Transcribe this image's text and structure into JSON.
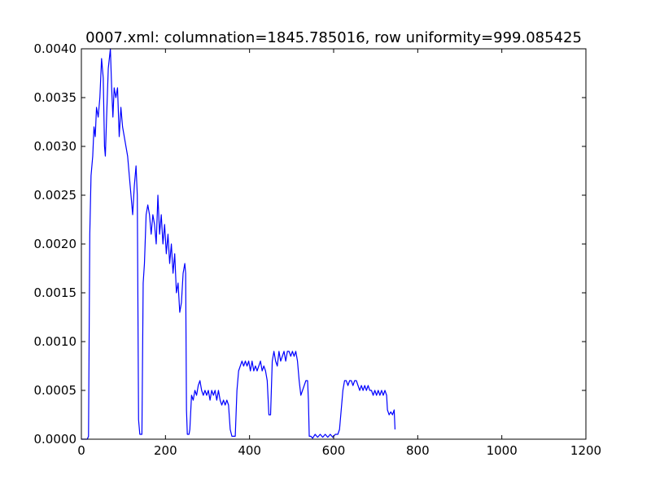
{
  "chart_data": {
    "type": "line",
    "title": "0007.xml: columnation=1845.785016, row uniformity=999.085425",
    "xlabel": "",
    "ylabel": "",
    "xlim": [
      0,
      1200
    ],
    "ylim": [
      0,
      0.004
    ],
    "x_ticks": [
      0,
      200,
      400,
      600,
      800,
      1000,
      1200
    ],
    "x_tick_labels": [
      "0",
      "200",
      "400",
      "600",
      "800",
      "1000",
      "1200"
    ],
    "y_ticks": [
      0,
      0.0005,
      0.001,
      0.0015,
      0.002,
      0.0025,
      0.003,
      0.0035,
      0.004
    ],
    "y_tick_labels": [
      "0.0000",
      "0.0005",
      "0.0010",
      "0.0015",
      "0.0020",
      "0.0025",
      "0.0030",
      "0.0035",
      "0.0040"
    ],
    "grid": false,
    "legend": "none",
    "line_color": "#0000ff",
    "series": [
      {
        "points": [
          [
            0,
            0.0
          ],
          [
            14,
            0.0
          ],
          [
            17,
            3e-05
          ],
          [
            20,
            0.0021
          ],
          [
            23,
            0.0027
          ],
          [
            27,
            0.0029
          ],
          [
            30,
            0.0032
          ],
          [
            33,
            0.0031
          ],
          [
            36,
            0.0034
          ],
          [
            40,
            0.0033
          ],
          [
            44,
            0.0035
          ],
          [
            48,
            0.0039
          ],
          [
            52,
            0.0037
          ],
          [
            55,
            0.003
          ],
          [
            57,
            0.0029
          ],
          [
            60,
            0.0033
          ],
          [
            64,
            0.0038
          ],
          [
            69,
            0.004
          ],
          [
            72,
            0.0036
          ],
          [
            75,
            0.0033
          ],
          [
            78,
            0.0036
          ],
          [
            82,
            0.0035
          ],
          [
            86,
            0.0036
          ],
          [
            90,
            0.0031
          ],
          [
            94,
            0.0034
          ],
          [
            98,
            0.0032
          ],
          [
            102,
            0.0031
          ],
          [
            106,
            0.003
          ],
          [
            110,
            0.0029
          ],
          [
            114,
            0.0027
          ],
          [
            118,
            0.0025
          ],
          [
            122,
            0.0023
          ],
          [
            126,
            0.0026
          ],
          [
            130,
            0.0028
          ],
          [
            133,
            0.0025
          ],
          [
            136,
            0.0002
          ],
          [
            139,
            5e-05
          ],
          [
            144,
            5e-05
          ],
          [
            147,
            0.0016
          ],
          [
            150,
            0.0018
          ],
          [
            154,
            0.0023
          ],
          [
            158,
            0.0024
          ],
          [
            162,
            0.0023
          ],
          [
            166,
            0.0021
          ],
          [
            170,
            0.0023
          ],
          [
            174,
            0.0022
          ],
          [
            178,
            0.002
          ],
          [
            182,
            0.0025
          ],
          [
            186,
            0.0021
          ],
          [
            190,
            0.0023
          ],
          [
            194,
            0.002
          ],
          [
            198,
            0.0022
          ],
          [
            202,
            0.0019
          ],
          [
            206,
            0.0021
          ],
          [
            210,
            0.0018
          ],
          [
            214,
            0.002
          ],
          [
            218,
            0.0017
          ],
          [
            222,
            0.0019
          ],
          [
            226,
            0.0015
          ],
          [
            230,
            0.0016
          ],
          [
            234,
            0.0013
          ],
          [
            238,
            0.0014
          ],
          [
            242,
            0.0017
          ],
          [
            246,
            0.0018
          ],
          [
            248,
            0.0017
          ],
          [
            250,
            0.0003
          ],
          [
            252,
            5e-05
          ],
          [
            256,
            5e-05
          ],
          [
            258,
            0.0001
          ],
          [
            262,
            0.00045
          ],
          [
            266,
            0.0004
          ],
          [
            270,
            0.0005
          ],
          [
            274,
            0.00045
          ],
          [
            278,
            0.00055
          ],
          [
            282,
            0.0006
          ],
          [
            286,
            0.0005
          ],
          [
            290,
            0.00045
          ],
          [
            294,
            0.0005
          ],
          [
            298,
            0.00045
          ],
          [
            302,
            0.0005
          ],
          [
            306,
            0.0004
          ],
          [
            310,
            0.0005
          ],
          [
            314,
            0.00045
          ],
          [
            318,
            0.0005
          ],
          [
            322,
            0.0004
          ],
          [
            326,
            0.0005
          ],
          [
            330,
            0.0004
          ],
          [
            334,
            0.00035
          ],
          [
            338,
            0.0004
          ],
          [
            342,
            0.00035
          ],
          [
            346,
            0.0004
          ],
          [
            350,
            0.00035
          ],
          [
            354,
            0.0001
          ],
          [
            358,
            3e-05
          ],
          [
            366,
            3e-05
          ],
          [
            370,
            0.0005
          ],
          [
            374,
            0.0007
          ],
          [
            378,
            0.00075
          ],
          [
            382,
            0.0008
          ],
          [
            386,
            0.00075
          ],
          [
            390,
            0.0008
          ],
          [
            394,
            0.00075
          ],
          [
            398,
            0.0008
          ],
          [
            402,
            0.0007
          ],
          [
            406,
            0.0008
          ],
          [
            410,
            0.0007
          ],
          [
            414,
            0.00075
          ],
          [
            418,
            0.0007
          ],
          [
            422,
            0.00075
          ],
          [
            426,
            0.0008
          ],
          [
            430,
            0.0007
          ],
          [
            434,
            0.00075
          ],
          [
            438,
            0.0007
          ],
          [
            442,
            0.0006
          ],
          [
            446,
            0.00025
          ],
          [
            450,
            0.00025
          ],
          [
            454,
            0.0008
          ],
          [
            458,
            0.0009
          ],
          [
            462,
            0.0008
          ],
          [
            466,
            0.00075
          ],
          [
            470,
            0.0009
          ],
          [
            474,
            0.0008
          ],
          [
            478,
            0.00085
          ],
          [
            482,
            0.0009
          ],
          [
            486,
            0.0008
          ],
          [
            490,
            0.0009
          ],
          [
            494,
            0.0009
          ],
          [
            498,
            0.00085
          ],
          [
            502,
            0.0009
          ],
          [
            506,
            0.00085
          ],
          [
            510,
            0.0009
          ],
          [
            514,
            0.0008
          ],
          [
            518,
            0.0006
          ],
          [
            522,
            0.00045
          ],
          [
            526,
            0.0005
          ],
          [
            530,
            0.00055
          ],
          [
            534,
            0.0006
          ],
          [
            538,
            0.0006
          ],
          [
            540,
            0.0004
          ],
          [
            542,
            3e-05
          ],
          [
            546,
            3e-05
          ],
          [
            550,
            1e-05
          ],
          [
            556,
            5e-05
          ],
          [
            562,
            2e-05
          ],
          [
            568,
            5e-05
          ],
          [
            574,
            2e-05
          ],
          [
            580,
            5e-05
          ],
          [
            586,
            2e-05
          ],
          [
            592,
            5e-05
          ],
          [
            598,
            2e-05
          ],
          [
            604,
            5e-05
          ],
          [
            610,
            5e-05
          ],
          [
            614,
            0.0001
          ],
          [
            618,
            0.0003
          ],
          [
            622,
            0.0005
          ],
          [
            626,
            0.0006
          ],
          [
            630,
            0.0006
          ],
          [
            634,
            0.00055
          ],
          [
            638,
            0.0006
          ],
          [
            642,
            0.0006
          ],
          [
            646,
            0.00055
          ],
          [
            650,
            0.0006
          ],
          [
            654,
            0.0006
          ],
          [
            658,
            0.00055
          ],
          [
            662,
            0.0005
          ],
          [
            666,
            0.00055
          ],
          [
            670,
            0.0005
          ],
          [
            674,
            0.00055
          ],
          [
            678,
            0.0005
          ],
          [
            682,
            0.00055
          ],
          [
            686,
            0.0005
          ],
          [
            690,
            0.0005
          ],
          [
            694,
            0.00045
          ],
          [
            698,
            0.0005
          ],
          [
            702,
            0.00045
          ],
          [
            706,
            0.0005
          ],
          [
            710,
            0.00045
          ],
          [
            714,
            0.0005
          ],
          [
            718,
            0.00045
          ],
          [
            722,
            0.0005
          ],
          [
            726,
            0.00045
          ],
          [
            728,
            0.0003
          ],
          [
            732,
            0.00025
          ],
          [
            736,
            0.00028
          ],
          [
            740,
            0.00025
          ],
          [
            744,
            0.0003
          ],
          [
            746,
            0.0001
          ]
        ]
      }
    ]
  }
}
